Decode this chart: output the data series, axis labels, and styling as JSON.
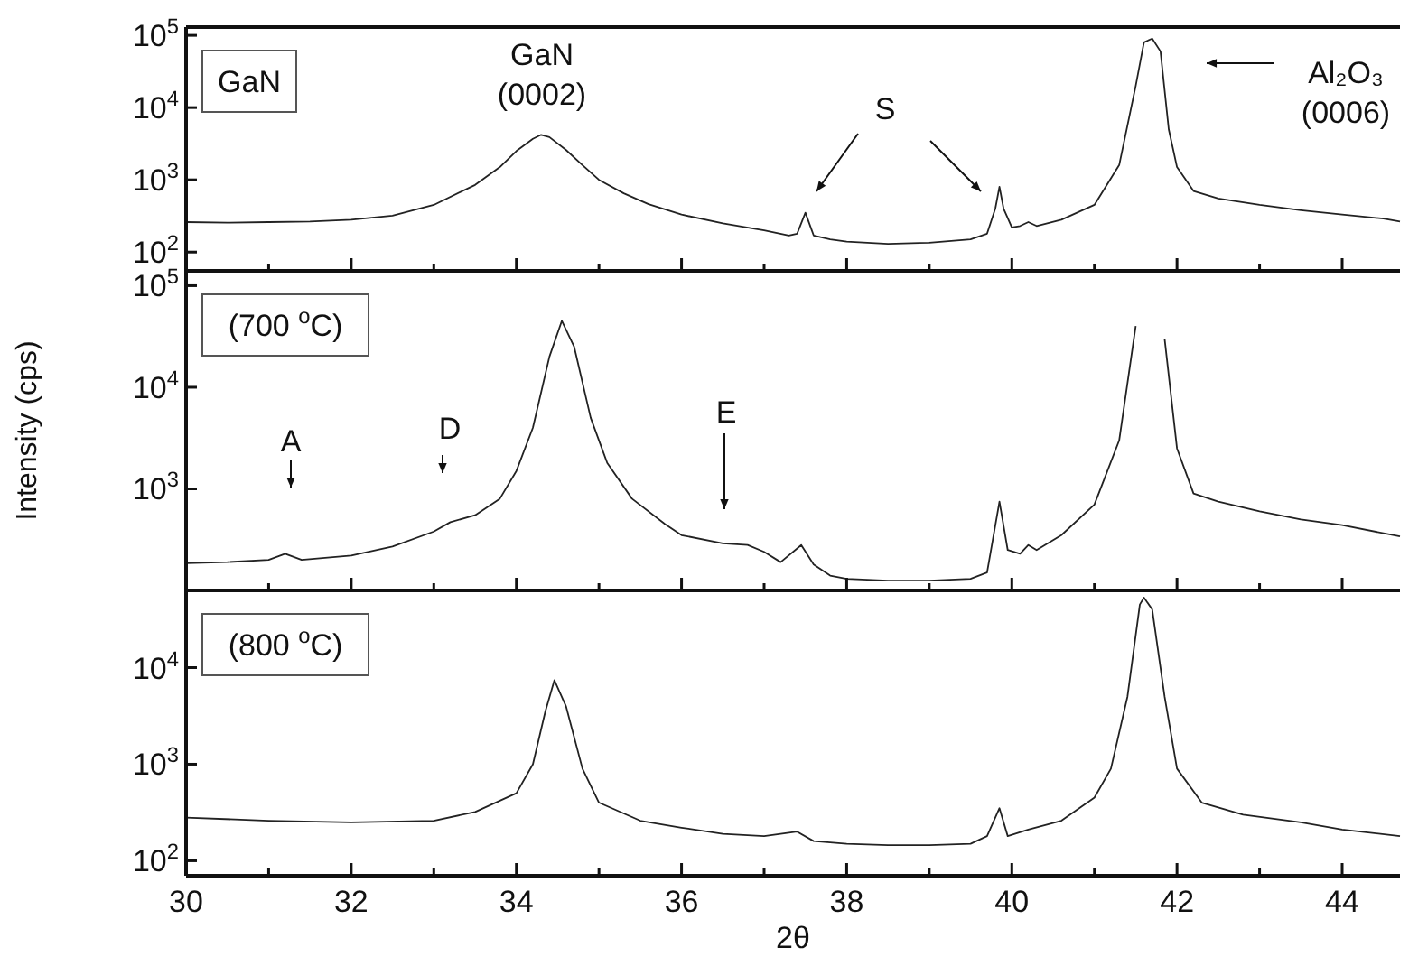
{
  "chart_data": [
    {
      "type": "line",
      "title": "GaN",
      "log": "y",
      "tick_labels": "y",
      "xlim": [
        30,
        44.7
      ],
      "ylim": [
        55,
        130000
      ],
      "xticks": [
        30,
        {
          "value": 31,
          "label": null
        },
        32,
        {
          "value": 33,
          "label": null
        },
        34,
        {
          "value": 35,
          "label": null
        },
        36,
        {
          "value": 37,
          "label": null
        },
        38,
        {
          "value": 39,
          "label": null
        },
        40,
        {
          "value": 41,
          "label": null
        },
        42,
        {
          "value": 43,
          "label": null
        },
        44
      ],
      "yticks": [
        {
          "value": 100,
          "label": "10$^{2}$"
        },
        {
          "value": 1000,
          "label": "10$^{3}$"
        },
        {
          "value": 10000,
          "label": "10$^{4}$"
        },
        {
          "value": 100000,
          "label": "10$^{5}$"
        }
      ],
      "annotations": [
        "GaN (0002)",
        "S",
        "Al₂O₃ (0006)"
      ],
      "series": [
        {
          "color": "#222222",
          "x": [
            30,
            30.5,
            31,
            31.5,
            32,
            32.5,
            33,
            33.5,
            33.8,
            34,
            34.2,
            34.3,
            34.4,
            34.6,
            34.8,
            35,
            35.3,
            35.6,
            36,
            36.5,
            37,
            37.3,
            37.4,
            37.5,
            37.6,
            37.8,
            38,
            38.5,
            39,
            39.5,
            39.7,
            39.8,
            39.85,
            39.9,
            40,
            40.1,
            40.2,
            40.3,
            40.6,
            41,
            41.3,
            41.5,
            41.6,
            41.7,
            41.8,
            41.9,
            42,
            42.2,
            42.5,
            43,
            43.5,
            44,
            44.5,
            44.7
          ],
          "values": [
            260,
            255,
            260,
            265,
            280,
            320,
            450,
            850,
            1500,
            2500,
            3700,
            4200,
            3900,
            2600,
            1600,
            1000,
            650,
            460,
            330,
            250,
            200,
            170,
            180,
            350,
            170,
            150,
            140,
            130,
            135,
            150,
            180,
            400,
            800,
            400,
            220,
            230,
            260,
            230,
            280,
            450,
            1600,
            20000,
            80000,
            90000,
            60000,
            5000,
            1500,
            700,
            550,
            450,
            380,
            330,
            290,
            265
          ]
        }
      ]
    },
    {
      "type": "line",
      "title": "(700 $^{o}$C)",
      "log": "y",
      "tick_labels": "y",
      "xlim": [
        30,
        44.7
      ],
      "ylim": [
        100,
        140000
      ],
      "xticks": [
        30,
        {
          "value": 31,
          "label": null
        },
        32,
        {
          "value": 33,
          "label": null
        },
        34,
        {
          "value": 35,
          "label": null
        },
        36,
        {
          "value": 37,
          "label": null
        },
        38,
        {
          "value": 39,
          "label": null
        },
        40,
        {
          "value": 41,
          "label": null
        },
        42,
        {
          "value": 43,
          "label": null
        },
        44
      ],
      "yticks": [
        {
          "value": 1000,
          "label": "10$^{3}$"
        },
        {
          "value": 10000,
          "label": "10$^{4}$"
        },
        {
          "value": 100000,
          "label": "10$^{5}$"
        }
      ],
      "ylabel": "Intensity (cps)",
      "annotations": [
        "A",
        "D",
        "E"
      ],
      "series": [
        {
          "color": "#222222",
          "x": [
            30,
            30.5,
            31,
            31.2,
            31.4,
            32,
            32.5,
            33,
            33.2,
            33.5,
            33.8,
            34,
            34.2,
            34.4,
            34.55,
            34.7,
            34.9,
            35.1,
            35.4,
            35.8,
            36,
            36.5,
            36.8,
            37,
            37.2,
            37.45,
            37.6,
            37.8,
            38,
            38.5,
            39,
            39.5,
            39.7,
            39.85,
            39.95,
            40.1,
            40.2,
            40.3,
            40.6,
            41,
            41.3,
            41.5,
            41.6,
            41.75,
            41.85,
            42,
            42.2,
            42.5,
            43,
            43.5,
            44,
            44.7
          ],
          "values": [
            185,
            190,
            200,
            230,
            200,
            220,
            270,
            380,
            470,
            550,
            800,
            1500,
            4000,
            20000,
            45000,
            25000,
            5000,
            1800,
            800,
            450,
            350,
            290,
            280,
            240,
            190,
            280,
            180,
            140,
            130,
            125,
            125,
            130,
            150,
            750,
            250,
            230,
            280,
            250,
            350,
            700,
            3000,
            40000,
            null,
            null,
            30000,
            2500,
            900,
            750,
            600,
            500,
            440,
            340
          ]
        }
      ]
    },
    {
      "type": "line",
      "title": "(800 $^{o}$C)",
      "log": "y",
      "xlabel": "2θ",
      "xlim": [
        30,
        44.7
      ],
      "ylim": [
        70,
        63000
      ],
      "xticks": [
        30,
        {
          "value": 31,
          "label": null
        },
        32,
        {
          "value": 33,
          "label": null
        },
        34,
        {
          "value": 35,
          "label": null
        },
        36,
        {
          "value": 37,
          "label": null
        },
        38,
        {
          "value": 39,
          "label": null
        },
        40,
        {
          "value": 41,
          "label": null
        },
        42,
        {
          "value": 43,
          "label": null
        },
        44
      ],
      "yticks": [
        {
          "value": 100,
          "label": "10$^{2}$"
        },
        {
          "value": 1000,
          "label": "10$^{3}$"
        },
        {
          "value": 10000,
          "label": "10$^{4}$"
        }
      ],
      "series": [
        {
          "color": "#222222",
          "x": [
            30,
            31,
            32,
            33,
            33.5,
            34,
            34.2,
            34.35,
            34.46,
            34.6,
            34.8,
            35,
            35.5,
            36,
            36.5,
            37,
            37.4,
            37.6,
            38,
            38.5,
            39,
            39.5,
            39.7,
            39.85,
            39.95,
            40.2,
            40.6,
            41,
            41.2,
            41.4,
            41.55,
            41.6,
            41.7,
            41.85,
            42,
            42.3,
            42.8,
            43.5,
            44,
            44.7
          ],
          "values": [
            280,
            260,
            250,
            260,
            320,
            500,
            1000,
            3500,
            7400,
            4000,
            900,
            400,
            260,
            220,
            190,
            180,
            200,
            160,
            150,
            145,
            145,
            150,
            180,
            350,
            180,
            210,
            260,
            450,
            900,
            5000,
            45000,
            53000,
            40000,
            5000,
            900,
            400,
            300,
            250,
            210,
            180
          ]
        }
      ]
    }
  ]
}
